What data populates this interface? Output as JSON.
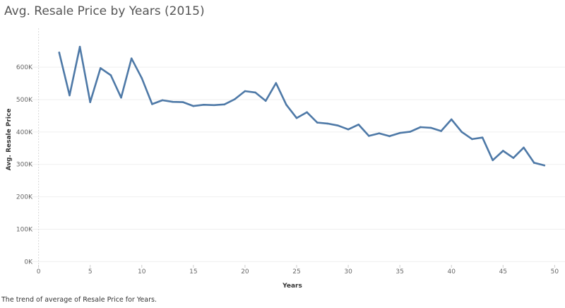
{
  "title": "Avg. Resale Price by Years (2015)",
  "caption": "The trend of average of Resale Price for Years.",
  "chart_data": {
    "type": "line",
    "title": "Avg. Resale Price by Years (2015)",
    "xlabel": "Years",
    "ylabel": "Avg. Resale Price",
    "xlim": [
      -1,
      51
    ],
    "ylim": [
      -10000,
      720000
    ],
    "x_ticks": [
      0,
      5,
      10,
      15,
      20,
      25,
      30,
      35,
      40,
      45,
      50
    ],
    "x_tick_labels": [
      "0",
      "5",
      "10",
      "15",
      "20",
      "25",
      "30",
      "35",
      "40",
      "45",
      "50"
    ],
    "y_ticks": [
      0,
      100000,
      200000,
      300000,
      400000,
      500000,
      600000
    ],
    "y_tick_labels": [
      "0K",
      "100K",
      "200K",
      "300K",
      "400K",
      "500K",
      "600K"
    ],
    "grid": true,
    "line_color": "#4e79a7",
    "x": [
      2,
      3,
      4,
      5,
      6,
      7,
      8,
      9,
      10,
      11,
      12,
      13,
      14,
      15,
      16,
      17,
      18,
      19,
      20,
      21,
      22,
      23,
      24,
      25,
      26,
      27,
      28,
      29,
      30,
      31,
      32,
      33,
      34,
      35,
      36,
      37,
      38,
      39,
      40,
      41,
      42,
      43,
      44,
      45,
      46,
      47,
      48,
      49
    ],
    "values": [
      645000,
      513000,
      663000,
      492000,
      597000,
      575000,
      506000,
      627000,
      566000,
      486000,
      498000,
      493000,
      492000,
      480000,
      484000,
      483000,
      485000,
      501000,
      526000,
      522000,
      496000,
      551000,
      484000,
      443000,
      461000,
      429000,
      426000,
      420000,
      408000,
      423000,
      388000,
      396000,
      387000,
      397000,
      401000,
      415000,
      413000,
      403000,
      439000,
      400000,
      378000,
      383000,
      313000,
      342000,
      320000,
      352000,
      305000,
      297000
    ]
  }
}
